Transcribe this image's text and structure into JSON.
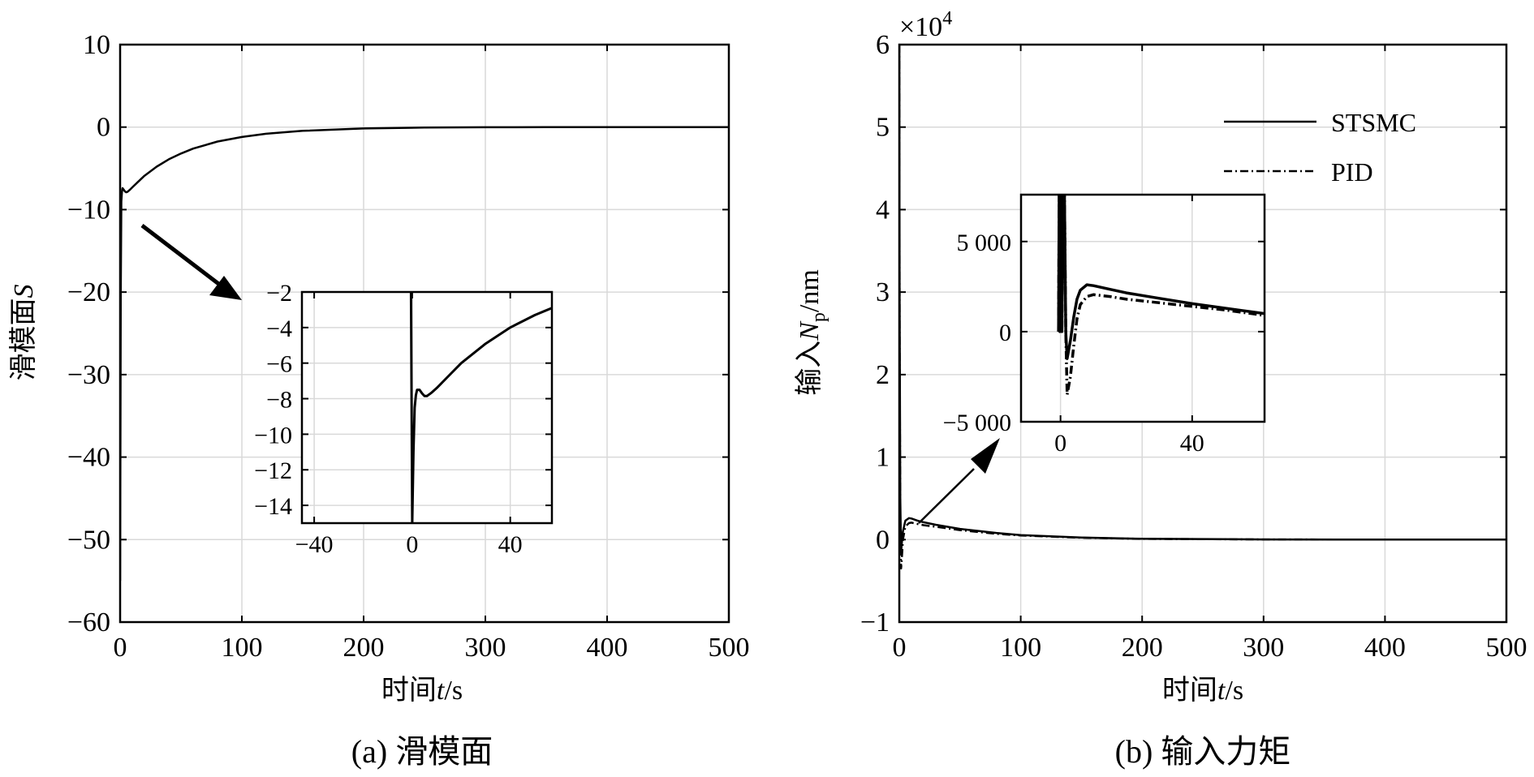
{
  "chart_data": [
    {
      "type": "line",
      "caption": "(a) 滑模面",
      "xlabel_prefix": "时间",
      "xlabel_var": "t",
      "xlabel_unit": "/s",
      "ylabel_prefix": "滑模面",
      "ylabel_var": "S",
      "xlim": [
        0,
        500
      ],
      "ylim": [
        -60,
        10
      ],
      "xticks": [
        0,
        100,
        200,
        300,
        400,
        500
      ],
      "yticks": [
        10,
        0,
        -10,
        -20,
        -30,
        -40,
        -50,
        -60
      ],
      "ytick_labels": [
        "10",
        "0",
        "−10",
        "−20",
        "−30",
        "−40",
        "−50",
        "−60"
      ],
      "grid": true,
      "series": [
        {
          "x": [
            0,
            0.5,
            1,
            1.5,
            2,
            3,
            4,
            5,
            6,
            8,
            10,
            15,
            20,
            30,
            40,
            50,
            60,
            80,
            100,
            120,
            150,
            200,
            250,
            300,
            350,
            400,
            450,
            500
          ],
          "y": [
            -55,
            -20,
            -9,
            -7.8,
            -7.4,
            -7.6,
            -7.8,
            -7.9,
            -7.85,
            -7.6,
            -7.3,
            -6.6,
            -5.9,
            -4.8,
            -3.9,
            -3.2,
            -2.6,
            -1.75,
            -1.2,
            -0.8,
            -0.45,
            -0.17,
            -0.06,
            -0.02,
            -0.01,
            0,
            0,
            0
          ]
        }
      ],
      "inset": {
        "xlim": [
          -45,
          57
        ],
        "ylim": [
          -15,
          -2
        ],
        "xticks": [
          -40,
          0,
          40
        ],
        "xtick_labels": [
          "−40",
          "0",
          "40"
        ],
        "yticks": [
          -2,
          -4,
          -6,
          -8,
          -10,
          -12,
          -14
        ],
        "ytick_labels": [
          "−2",
          "−4",
          "−6",
          "−8",
          "−10",
          "−12",
          "−14"
        ],
        "x": [
          -1,
          -0.5,
          0,
          0.5,
          1,
          1.5,
          2,
          3,
          4,
          5,
          6,
          8,
          10,
          15,
          20,
          30,
          40,
          50,
          57
        ],
        "y": [
          -2,
          -2,
          -15,
          -11,
          -8.5,
          -7.8,
          -7.5,
          -7.5,
          -7.7,
          -7.85,
          -7.85,
          -7.65,
          -7.4,
          -6.7,
          -6.0,
          -4.9,
          -4.0,
          -3.3,
          -2.9
        ]
      }
    },
    {
      "type": "line",
      "caption": "(b) 输入力矩",
      "xlabel_prefix": "时间",
      "xlabel_var": "t",
      "xlabel_unit": "/s",
      "ylabel_prefix": "输入",
      "ylabel_var": "N",
      "ylabel_sub": "p",
      "ylabel_unit": "/nm",
      "y_multiplier": "×10",
      "y_multiplier_exp": "4",
      "xlim": [
        0,
        500
      ],
      "ylim": [
        -10000,
        60000
      ],
      "xticks": [
        0,
        100,
        200,
        300,
        400,
        500
      ],
      "yticks": [
        60000,
        50000,
        40000,
        30000,
        20000,
        10000,
        0,
        -10000
      ],
      "ytick_labels": [
        "6",
        "5",
        "4",
        "3",
        "2",
        "1",
        "0",
        "−1"
      ],
      "grid": true,
      "legend_position": "top-right",
      "series": [
        {
          "name": "STSMC",
          "x": [
            0,
            0.3,
            0.8,
            1.5,
            2,
            3,
            5,
            8,
            10,
            15,
            20,
            30,
            50,
            80,
            100,
            150,
            200,
            300,
            400,
            500
          ],
          "y": [
            60000,
            30000,
            5000,
            -1500,
            -500,
            1000,
            2300,
            2600,
            2550,
            2300,
            2100,
            1800,
            1300,
            800,
            550,
            250,
            100,
            20,
            0,
            0
          ]
        },
        {
          "name": "PID",
          "x": [
            0,
            0.3,
            0.8,
            1.5,
            2,
            3,
            5,
            8,
            10,
            15,
            20,
            30,
            50,
            80,
            100,
            150,
            200,
            300,
            400,
            500
          ],
          "y": [
            60000,
            25000,
            2000,
            -3500,
            -2500,
            0,
            1600,
            2000,
            2050,
            1900,
            1750,
            1550,
            1150,
            700,
            500,
            220,
            90,
            15,
            0,
            0
          ]
        }
      ],
      "inset": {
        "xlim": [
          -12,
          62
        ],
        "ylim": [
          -5000,
          7600
        ],
        "xticks": [
          0,
          40
        ],
        "xtick_labels": [
          "0",
          "40"
        ],
        "yticks": [
          5000,
          0,
          -5000
        ],
        "ytick_labels": [
          "5 000",
          "0",
          "−5 000"
        ],
        "series": [
          {
            "name": "STSMC",
            "x": [
              -0.6,
              -0.4,
              -0.2,
              0,
              0.2,
              0.4,
              0.8,
              1.2,
              1.6,
              2,
              3,
              4,
              5,
              6,
              8,
              10,
              15,
              20,
              30,
              40,
              50,
              62
            ],
            "y": [
              0,
              7600,
              0,
              7600,
              7600,
              0,
              7600,
              7600,
              0,
              -1500,
              -500,
              800,
              1800,
              2300,
              2600,
              2550,
              2350,
              2150,
              1850,
              1550,
              1300,
              1000
            ]
          },
          {
            "name": "PID",
            "x": [
              -0.6,
              -0.4,
              -0.2,
              0,
              0.2,
              0.4,
              0.8,
              1.2,
              1.6,
              2,
              3,
              4,
              5,
              6,
              8,
              10,
              15,
              20,
              30,
              40,
              50,
              62
            ],
            "y": [
              0,
              7600,
              0,
              7600,
              7600,
              0,
              7600,
              7600,
              0,
              -3500,
              -2500,
              -800,
              700,
              1500,
              1950,
              2050,
              1950,
              1800,
              1600,
              1400,
              1200,
              900
            ]
          }
        ]
      }
    }
  ]
}
